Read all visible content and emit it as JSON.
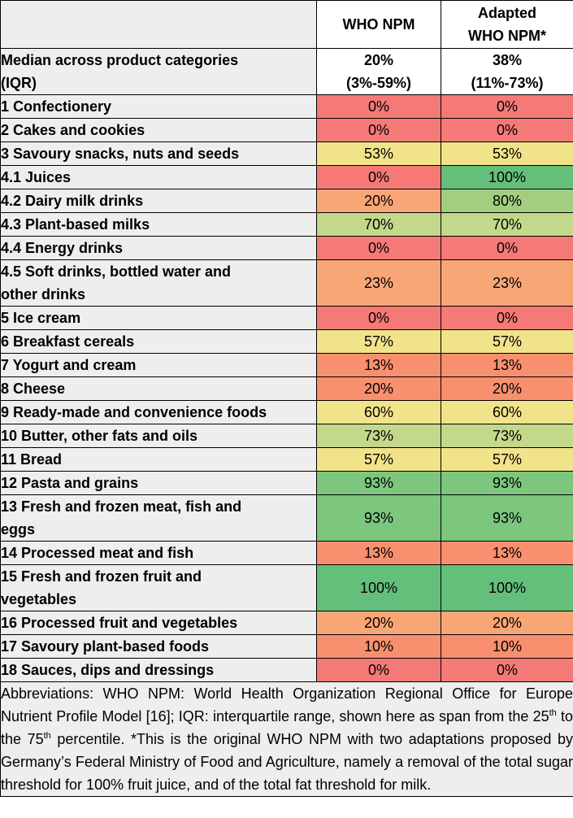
{
  "colors": {
    "red": "#f57a77",
    "orange": "#f9a677",
    "salmon": "#f8906f",
    "yellow": "#f1e38a",
    "lightgreen": "#c3d88a",
    "midgreen": "#a3ce80",
    "green": "#7dc67e",
    "darkgreen": "#64bf7b"
  },
  "header": {
    "col1": "",
    "col2": "WHO NPM",
    "col3_line1": "Adapted",
    "col3_line2": "WHO NPM*"
  },
  "median": {
    "label_line1": "Median across product categories",
    "label_line2": "(IQR)",
    "who_value": "20%",
    "who_iqr": "(3%-59%)",
    "adapted_value": "38%",
    "adapted_iqr": "(11%-73%)"
  },
  "rows": [
    {
      "label": "1 Confectionery",
      "who": "0%",
      "adapted": "0%",
      "who_color": "red",
      "adapted_color": "red"
    },
    {
      "label": "2 Cakes and cookies",
      "who": "0%",
      "adapted": "0%",
      "who_color": "red",
      "adapted_color": "red"
    },
    {
      "label": "3 Savoury snacks, nuts and seeds",
      "who": "53%",
      "adapted": "53%",
      "who_color": "yellow",
      "adapted_color": "yellow"
    },
    {
      "label": "4.1 Juices",
      "who": "0%",
      "adapted": "100%",
      "who_color": "red",
      "adapted_color": "darkgreen"
    },
    {
      "label": "4.2 Dairy milk drinks",
      "who": "20%",
      "adapted": "80%",
      "who_color": "orange",
      "adapted_color": "midgreen"
    },
    {
      "label": "4.3 Plant-based milks",
      "who": "70%",
      "adapted": "70%",
      "who_color": "lightgreen",
      "adapted_color": "lightgreen"
    },
    {
      "label": "4.4 Energy drinks",
      "who": "0%",
      "adapted": "0%",
      "who_color": "red",
      "adapted_color": "red"
    },
    {
      "label": "4.5 Soft drinks, bottled water and other drinks",
      "label_line1": "4.5 Soft drinks, bottled water and",
      "label_line2": "other drinks",
      "who": "23%",
      "adapted": "23%",
      "who_color": "orange",
      "adapted_color": "orange",
      "tall": true
    },
    {
      "label": "5 Ice cream",
      "who": "0%",
      "adapted": "0%",
      "who_color": "red",
      "adapted_color": "red"
    },
    {
      "label": "6 Breakfast cereals",
      "who": "57%",
      "adapted": "57%",
      "who_color": "yellow",
      "adapted_color": "yellow"
    },
    {
      "label": "7 Yogurt and cream",
      "who": "13%",
      "adapted": "13%",
      "who_color": "salmon",
      "adapted_color": "salmon"
    },
    {
      "label": "8 Cheese",
      "who": "20%",
      "adapted": "20%",
      "who_color": "salmon",
      "adapted_color": "salmon"
    },
    {
      "label": "9 Ready-made and convenience foods",
      "who": "60%",
      "adapted": "60%",
      "who_color": "yellow",
      "adapted_color": "yellow"
    },
    {
      "label": "10 Butter, other fats and oils",
      "who": "73%",
      "adapted": "73%",
      "who_color": "lightgreen",
      "adapted_color": "lightgreen"
    },
    {
      "label": "11 Bread",
      "who": "57%",
      "adapted": "57%",
      "who_color": "yellow",
      "adapted_color": "yellow"
    },
    {
      "label": "12 Pasta and grains",
      "who": "93%",
      "adapted": "93%",
      "who_color": "green",
      "adapted_color": "green"
    },
    {
      "label": "13 Fresh and frozen meat, fish and eggs",
      "label_line1": "13 Fresh and frozen meat, fish and",
      "label_line2": "eggs",
      "who": "93%",
      "adapted": "93%",
      "who_color": "green",
      "adapted_color": "green",
      "tall": true
    },
    {
      "label": "14 Processed meat and fish",
      "who": "13%",
      "adapted": "13%",
      "who_color": "salmon",
      "adapted_color": "salmon"
    },
    {
      "label": "15 Fresh and frozen fruit and vegetables",
      "label_line1": "15 Fresh and frozen fruit and",
      "label_line2": "vegetables",
      "who": "100%",
      "adapted": "100%",
      "who_color": "darkgreen",
      "adapted_color": "darkgreen",
      "tall": true
    },
    {
      "label": "16 Processed fruit and vegetables",
      "who": "20%",
      "adapted": "20%",
      "who_color": "orange",
      "adapted_color": "orange"
    },
    {
      "label": "17 Savoury plant-based foods",
      "who": "10%",
      "adapted": "10%",
      "who_color": "salmon",
      "adapted_color": "salmon"
    },
    {
      "label": "18 Sauces, dips and dressings",
      "who": "0%",
      "adapted": "0%",
      "who_color": "red",
      "adapted_color": "red"
    }
  ],
  "footnote": {
    "part1": "Abbreviations: WHO NPM: World Health Organization Regional Office for Europe Nutrient Profile Model [16]; IQR: interquartile range, shown here as span from the 25",
    "sup1": "th",
    "part2": " to the 75",
    "sup2": "th",
    "part3": " percentile. *This is the original WHO NPM with two adaptations proposed by Germany’s Federal Ministry of Food and Agriculture, namely a removal of the total sugar threshold for 100% fruit juice, and of the total fat threshold for milk."
  }
}
